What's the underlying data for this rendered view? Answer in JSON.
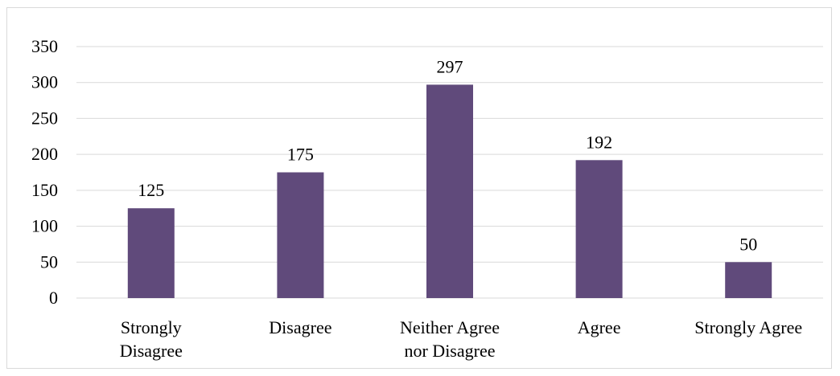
{
  "chart_data": {
    "type": "bar",
    "categories": [
      [
        "Strongly",
        "Disagree"
      ],
      [
        "Disagree"
      ],
      [
        "Neither Agree",
        "nor Disagree"
      ],
      [
        "Agree"
      ],
      [
        "Strongly Agree"
      ]
    ],
    "values": [
      125,
      175,
      297,
      192,
      50
    ],
    "data_labels": [
      "125",
      "175",
      "297",
      "192",
      "50"
    ],
    "yticks": [
      "0",
      "50",
      "100",
      "150",
      "200",
      "250",
      "300",
      "350"
    ],
    "ylim": [
      0,
      350
    ],
    "title": "",
    "xlabel": "",
    "ylabel": "",
    "grid": true,
    "legend": "none",
    "bar_color": "#604a7b",
    "grid_color": "#d9d9d9"
  }
}
